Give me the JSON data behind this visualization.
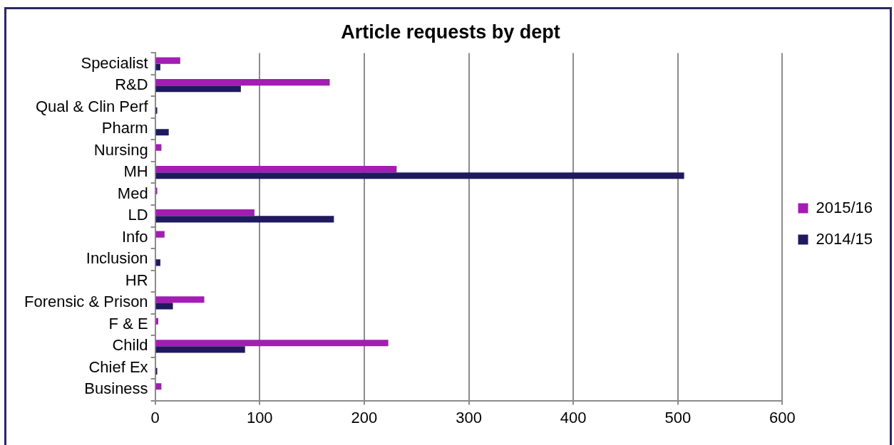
{
  "chart_data": {
    "type": "bar",
    "orientation": "horizontal",
    "title": "Article requests by dept",
    "categories": [
      "Specialist",
      "R&D",
      "Qual & Clin Perf",
      "Pharm",
      "Nursing",
      "MH",
      "Med",
      "LD",
      "Info",
      "Inclusion",
      "HR",
      "Forensic & Prison",
      "F & E",
      "Child",
      "Chief Ex",
      "Business"
    ],
    "series": [
      {
        "name": "2015/16",
        "color": "#a31cb3",
        "values": [
          24,
          167,
          0,
          0,
          6,
          231,
          2,
          95,
          9,
          null,
          null,
          47,
          3,
          223,
          0,
          6
        ]
      },
      {
        "name": "2014/15",
        "color": "#1f1a5e",
        "values": [
          5,
          82,
          2,
          13,
          0,
          506,
          null,
          171,
          0,
          5,
          null,
          17,
          0,
          86,
          2,
          0
        ]
      }
    ],
    "xlim": [
      0,
      600
    ],
    "xticks": [
      0,
      100,
      200,
      300,
      400,
      500,
      600
    ],
    "grid": "x",
    "legend": "right"
  }
}
